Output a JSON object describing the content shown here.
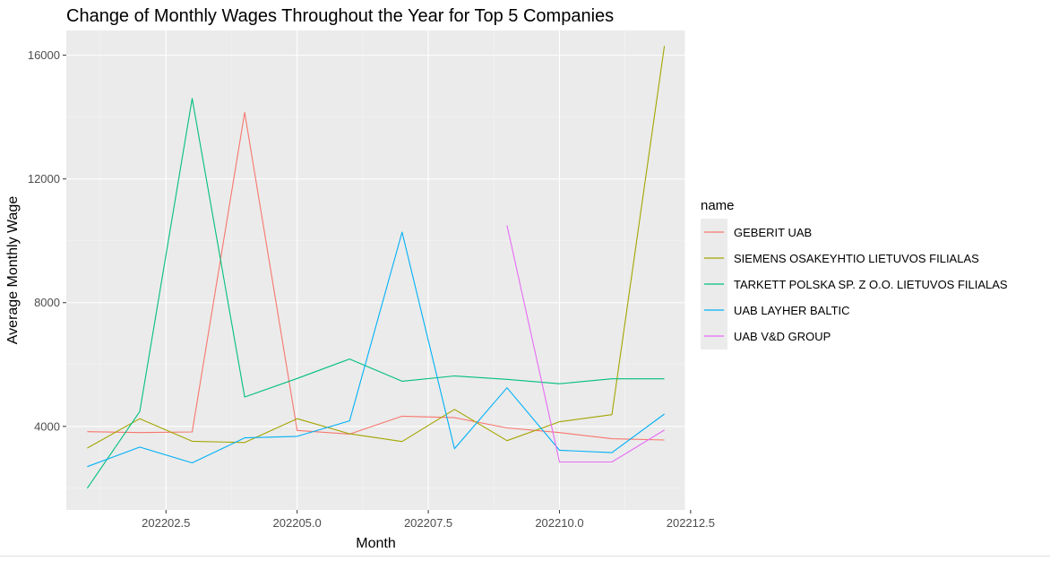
{
  "chart_data": {
    "type": "line",
    "title": "Change of Monthly Wages Throughout the Year for Top 5 Companies",
    "xlabel": "Month",
    "ylabel": "Average Monthly Wage",
    "xlim": [
      202200.6,
      202212.4
    ],
    "ylim": [
      1300,
      16800
    ],
    "x_ticks": [
      202202.5,
      202205.0,
      202207.5,
      202210.0,
      202212.5
    ],
    "x_tick_labels": [
      "202202.5",
      "202205.0",
      "202207.5",
      "202210.0",
      "202212.5"
    ],
    "y_ticks": [
      4000,
      8000,
      12000,
      16000
    ],
    "y_tick_labels": [
      "4000",
      "8000",
      "12000",
      "16000"
    ],
    "grid": true,
    "legend": {
      "title": "name",
      "position": "right"
    },
    "series": [
      {
        "name": "GEBERIT UAB",
        "color": "#F8766D",
        "x": [
          202201,
          202202,
          202203,
          202204,
          202205,
          202206,
          202207,
          202208,
          202209,
          202210,
          202211,
          202212
        ],
        "y": [
          3830,
          3800,
          3820,
          14150,
          3870,
          3750,
          4330,
          4280,
          3950,
          3800,
          3600,
          3560
        ]
      },
      {
        "name": "SIEMENS OSAKEYHTIO LIETUVOS FILIALAS",
        "color": "#A3A500",
        "x": [
          202201,
          202202,
          202203,
          202204,
          202205,
          202206,
          202207,
          202208,
          202209,
          202210,
          202211,
          202212
        ],
        "y": [
          3300,
          4250,
          3520,
          3480,
          4250,
          3760,
          3510,
          4550,
          3540,
          4150,
          4380,
          16300
        ]
      },
      {
        "name": "TARKETT POLSKA SP. Z O.O. LIETUVOS FILIALAS",
        "color": "#00BF7D",
        "x": [
          202201,
          202202,
          202203,
          202204,
          202205,
          202206,
          202207,
          202208,
          202209,
          202210,
          202211,
          202212
        ],
        "y": [
          2000,
          4480,
          14600,
          4950,
          5550,
          6180,
          5460,
          5630,
          5520,
          5380,
          5540,
          5540
        ]
      },
      {
        "name": "UAB LAYHER BALTIC",
        "color": "#00B0F6",
        "x": [
          202201,
          202202,
          202203,
          202204,
          202205,
          202206,
          202207,
          202208,
          202209,
          202210,
          202211,
          202212
        ],
        "y": [
          2700,
          3330,
          2820,
          3630,
          3680,
          4180,
          10280,
          3280,
          5250,
          3230,
          3150,
          4400
        ]
      },
      {
        "name": "UAB V&D GROUP",
        "color": "#E76BF3",
        "x": [
          202209,
          202210,
          202211,
          202212
        ],
        "y": [
          10500,
          2850,
          2850,
          3880
        ]
      }
    ]
  }
}
